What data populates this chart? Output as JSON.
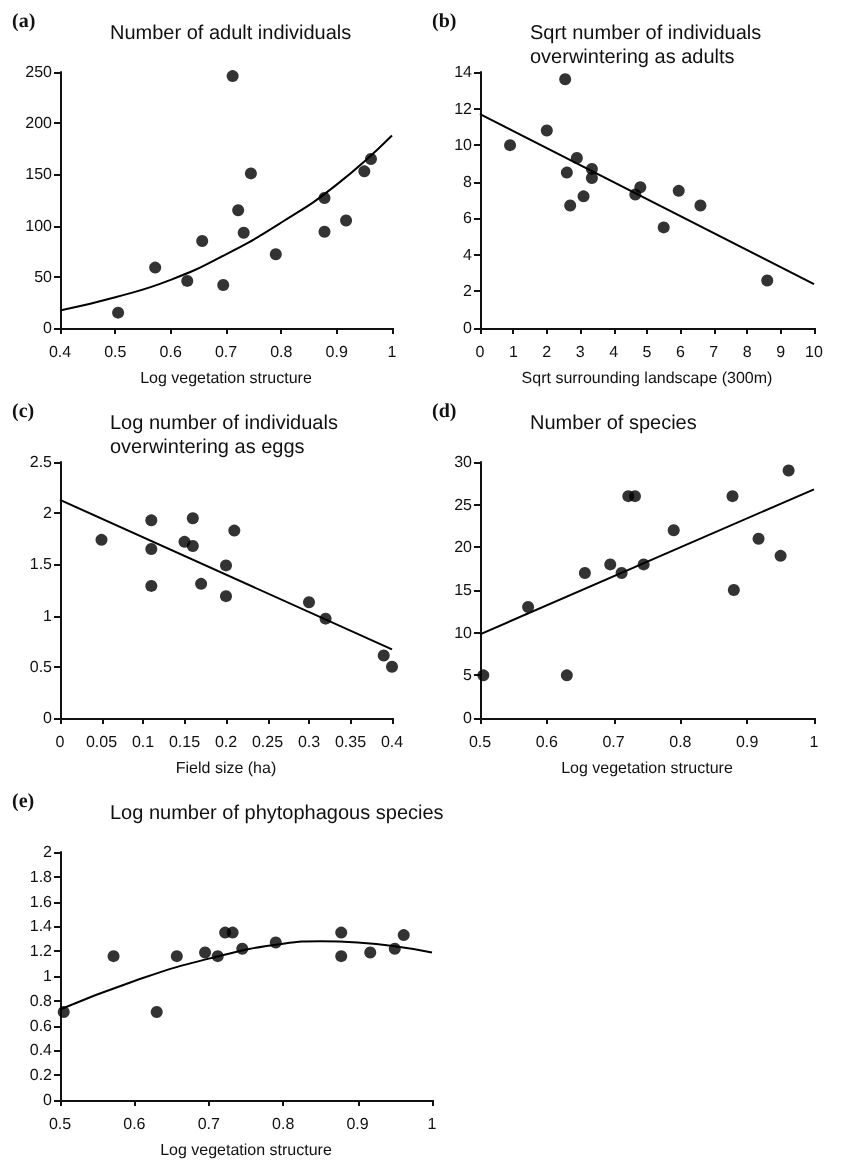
{
  "chart_data": [
    {
      "type": "scatter",
      "title": "Number of adult individuals",
      "annotations": [
        "(a)"
      ],
      "xlabel": "Log vegetation structure",
      "xlim": [
        0.4,
        1
      ],
      "xticks": [
        0.4,
        0.5,
        0.6,
        0.7,
        0.8,
        0.9,
        1
      ],
      "ylim": [
        0,
        250
      ],
      "yticks": [
        0,
        50,
        100,
        150,
        200,
        250
      ],
      "grid": false,
      "series": [
        {
          "marker": "circle",
          "color": "#000000",
          "x": [
            0.505,
            0.572,
            0.63,
            0.657,
            0.695,
            0.712,
            0.722,
            0.732,
            0.745,
            0.79,
            0.878,
            0.878,
            0.917,
            0.95,
            0.962
          ],
          "values": [
            15,
            59,
            46,
            85,
            42,
            246,
            115,
            93,
            151,
            72,
            127,
            94,
            105,
            153,
            165
          ]
        },
        {
          "type": "line",
          "marker": "none",
          "line_style": "solid",
          "color": "#000000",
          "x": [
            0.4,
            0.5,
            0.6,
            0.7,
            0.8,
            0.9,
            1
          ],
          "values": [
            17,
            30,
            47,
            72,
            103,
            140,
            188
          ]
        }
      ]
    },
    {
      "type": "scatter",
      "title": "Sqrt number of individuals overwintering as adults",
      "annotations": [
        "(b)"
      ],
      "xlabel": "Sqrt surrounding landscape (300m)",
      "xlim": [
        0,
        10
      ],
      "xticks": [
        0,
        1,
        2,
        3,
        4,
        5,
        6,
        7,
        8,
        9,
        10
      ],
      "ylim": [
        0,
        14
      ],
      "yticks": [
        0,
        2,
        4,
        6,
        8,
        10,
        12,
        14
      ],
      "grid": false,
      "series": [
        {
          "marker": "circle",
          "color": "#000000",
          "x": [
            0.9,
            2.0,
            2.55,
            2.6,
            2.7,
            2.9,
            3.1,
            3.35,
            3.35,
            4.65,
            4.8,
            5.5,
            5.95,
            6.6,
            8.6
          ],
          "values": [
            10,
            10.8,
            13.6,
            8.5,
            6.7,
            9.3,
            7.2,
            8.7,
            8.2,
            7.3,
            7.7,
            5.5,
            7.5,
            6.7,
            2.6
          ]
        },
        {
          "type": "line",
          "marker": "none",
          "line_style": "solid",
          "color": "#000000",
          "x": [
            0,
            10
          ],
          "values": [
            11.7,
            2.4
          ]
        }
      ]
    },
    {
      "type": "scatter",
      "title": "Log number of individuals overwintering as eggs",
      "annotations": [
        "(c)"
      ],
      "xlabel": "Field size (ha)",
      "xlim": [
        0,
        0.4
      ],
      "xticks": [
        0,
        0.05,
        0.1,
        0.15,
        0.2,
        0.25,
        0.3,
        0.35,
        0.4
      ],
      "ylim": [
        0,
        2.5
      ],
      "yticks": [
        0,
        0.5,
        1,
        1.5,
        2,
        2.5
      ],
      "grid": false,
      "series": [
        {
          "marker": "circle",
          "color": "#000000",
          "x": [
            0.05,
            0.11,
            0.11,
            0.11,
            0.15,
            0.16,
            0.16,
            0.17,
            0.2,
            0.2,
            0.21,
            0.3,
            0.32,
            0.39,
            0.4
          ],
          "values": [
            1.74,
            1.93,
            1.65,
            1.29,
            1.72,
            1.95,
            1.68,
            1.31,
            1.49,
            1.19,
            1.83,
            1.13,
            0.97,
            0.61,
            0.5
          ]
        },
        {
          "type": "line",
          "marker": "none",
          "line_style": "solid",
          "color": "#000000",
          "x": [
            0,
            0.4
          ],
          "values": [
            2.13,
            0.67
          ]
        }
      ]
    },
    {
      "type": "scatter",
      "title": "Number of species",
      "annotations": [
        "(d)"
      ],
      "xlabel": "Log vegetation structure",
      "xlim": [
        0.5,
        1
      ],
      "xticks": [
        0.5,
        0.6,
        0.7,
        0.8,
        0.9,
        1
      ],
      "ylim": [
        0,
        30
      ],
      "yticks": [
        0,
        5,
        10,
        15,
        20,
        25,
        30
      ],
      "grid": false,
      "series": [
        {
          "marker": "circle",
          "color": "#000000",
          "x": [
            0.505,
            0.572,
            0.63,
            0.657,
            0.695,
            0.712,
            0.722,
            0.732,
            0.745,
            0.79,
            0.878,
            0.88,
            0.917,
            0.95,
            0.962
          ],
          "values": [
            5,
            13,
            5,
            17,
            18,
            17,
            26,
            26,
            18,
            22,
            26,
            15,
            21,
            19,
            29
          ]
        },
        {
          "type": "line",
          "marker": "none",
          "line_style": "solid",
          "color": "#000000",
          "x": [
            0.5,
            1
          ],
          "values": [
            9.8,
            26.8
          ]
        }
      ]
    },
    {
      "type": "scatter",
      "title": "Log number of phytophagous species",
      "annotations": [
        "(e)"
      ],
      "xlabel": "Log vegetation structure",
      "xlim": [
        0.5,
        1
      ],
      "xticks": [
        0.5,
        0.6,
        0.7,
        0.8,
        0.9,
        1
      ],
      "ylim": [
        0,
        2
      ],
      "yticks": [
        0,
        0.2,
        0.4,
        0.6,
        0.8,
        1,
        1.2,
        1.4,
        1.6,
        1.8,
        2
      ],
      "grid": false,
      "series": [
        {
          "marker": "circle",
          "color": "#000000",
          "x": [
            0.505,
            0.572,
            0.63,
            0.657,
            0.695,
            0.712,
            0.722,
            0.732,
            0.745,
            0.79,
            0.878,
            0.878,
            0.917,
            0.95,
            0.962
          ],
          "values": [
            0.71,
            1.16,
            0.71,
            1.16,
            1.19,
            1.16,
            1.35,
            1.35,
            1.22,
            1.27,
            1.35,
            1.16,
            1.19,
            1.22,
            1.33
          ]
        },
        {
          "type": "line",
          "marker": "none",
          "line_style": "solid",
          "color": "#000000",
          "x": [
            0.5,
            0.6,
            0.7,
            0.8,
            0.85,
            0.9,
            1
          ],
          "values": [
            0.73,
            0.96,
            1.14,
            1.26,
            1.28,
            1.27,
            1.19
          ]
        }
      ]
    }
  ]
}
